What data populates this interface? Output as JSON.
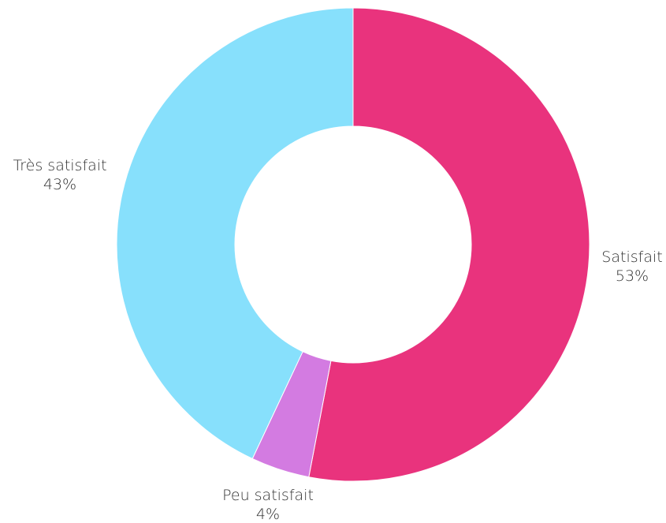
{
  "chart_data": {
    "type": "pie",
    "variant": "donut",
    "start_angle_deg": 0,
    "direction": "clockwise",
    "title": "",
    "legend": "none",
    "slices": [
      {
        "label": "Satisfait",
        "value": 53,
        "display": "53%",
        "color": "#E9337D"
      },
      {
        "label": "Peu satisfait",
        "value": 4,
        "display": "4%",
        "color": "#D37BE1"
      },
      {
        "label": "Très satisfait",
        "value": 43,
        "display": "43%",
        "color": "#87E0FC"
      }
    ]
  }
}
